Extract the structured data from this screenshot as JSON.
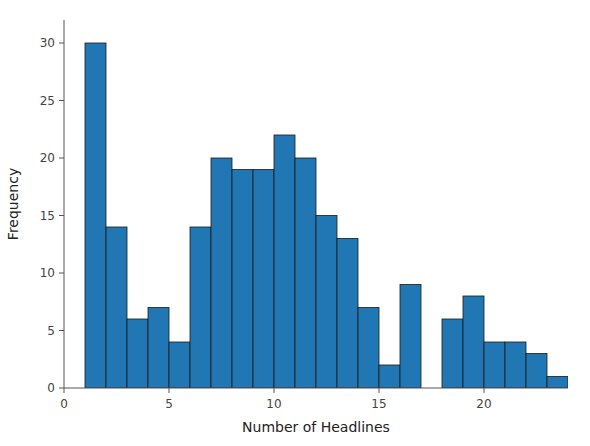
{
  "chart_data": {
    "type": "bar",
    "xlabel": "Number of Headlines",
    "ylabel": "Frequency",
    "x": [
      1,
      2,
      3,
      4,
      5,
      6,
      7,
      8,
      9,
      10,
      11,
      12,
      13,
      14,
      15,
      16,
      18,
      19,
      20,
      21,
      22,
      23
    ],
    "values": [
      30,
      14,
      6,
      7,
      4,
      14,
      20,
      19,
      19,
      22,
      20,
      15,
      13,
      7,
      2,
      9,
      6,
      8,
      4,
      4,
      3,
      1
    ],
    "color": "#2077b4",
    "xlim": [
      0,
      24
    ],
    "xticks": [
      0,
      5,
      10,
      15,
      20
    ],
    "ylim": [
      0,
      32
    ],
    "yticks": [
      0,
      5,
      10,
      15,
      20,
      25,
      30
    ],
    "grid": false
  }
}
